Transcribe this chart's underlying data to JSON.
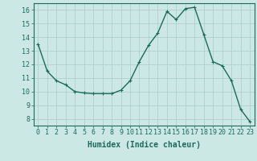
{
  "x": [
    0,
    1,
    2,
    3,
    4,
    5,
    6,
    7,
    8,
    9,
    10,
    11,
    12,
    13,
    14,
    15,
    16,
    17,
    18,
    19,
    20,
    21,
    22,
    23
  ],
  "y": [
    13.5,
    11.5,
    10.8,
    10.5,
    10.0,
    9.9,
    9.85,
    9.85,
    9.85,
    10.1,
    10.8,
    12.2,
    13.4,
    14.3,
    15.9,
    15.3,
    16.1,
    16.2,
    14.2,
    12.2,
    11.9,
    10.8,
    8.7,
    7.8
  ],
  "line_color": "#1a6b5a",
  "marker": "+",
  "marker_color": "#1a6b5a",
  "bg_color": "#cce8e4",
  "grid_color": "#aacccc",
  "tick_color": "#1a6b5a",
  "xlabel": "Humidex (Indice chaleur)",
  "ylim": [
    7.5,
    16.5
  ],
  "xlim": [
    -0.5,
    23.5
  ],
  "yticks": [
    8,
    9,
    10,
    11,
    12,
    13,
    14,
    15,
    16
  ],
  "xticks": [
    0,
    1,
    2,
    3,
    4,
    5,
    6,
    7,
    8,
    9,
    10,
    11,
    12,
    13,
    14,
    15,
    16,
    17,
    18,
    19,
    20,
    21,
    22,
    23
  ],
  "xlabel_fontsize": 7,
  "tick_fontsize": 6,
  "marker_size": 3,
  "line_width": 1.0
}
